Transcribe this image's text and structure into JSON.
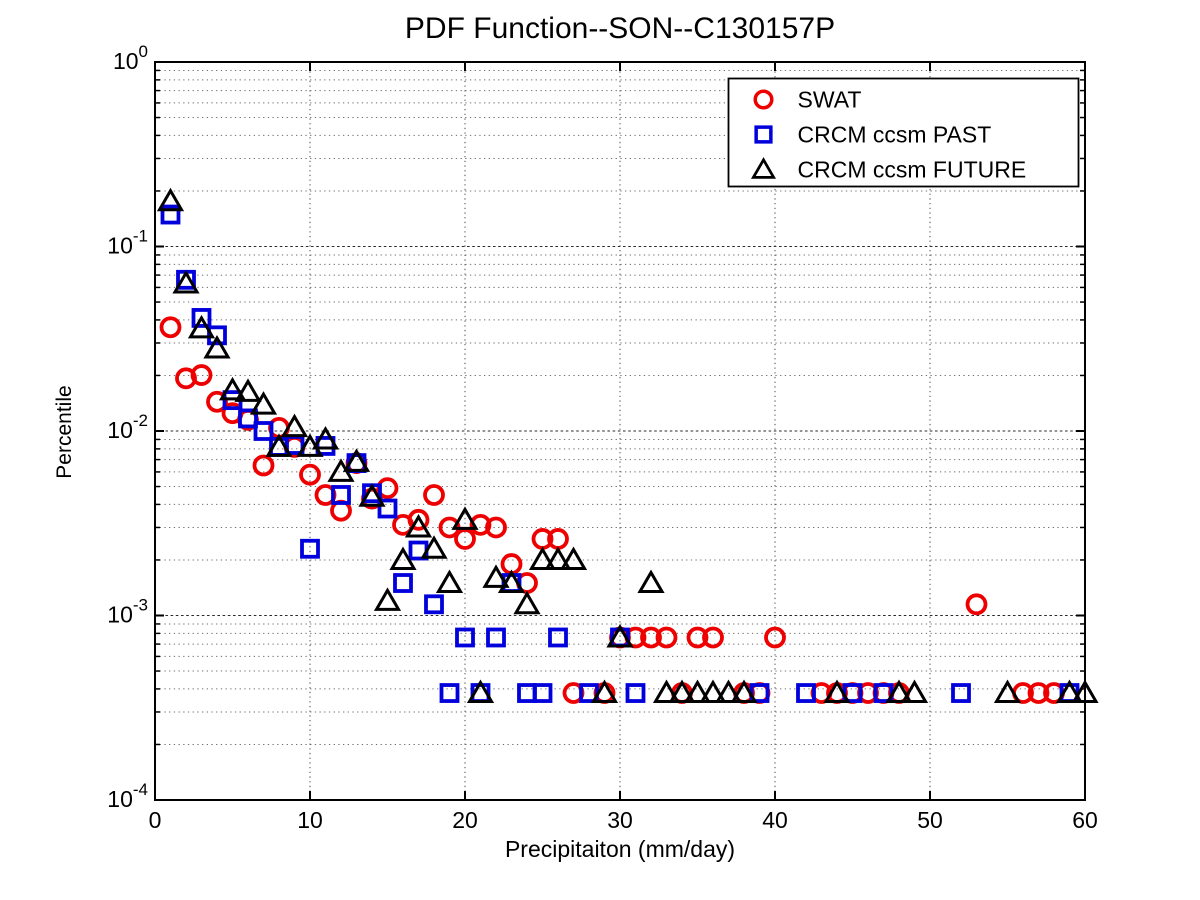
{
  "chart_data": {
    "type": "scatter",
    "title": "PDF Function--SON--C130157P",
    "xlabel": "Precipitaiton (mm/day)",
    "ylabel": "Percentile",
    "x_axis": {
      "min": 0,
      "max": 60,
      "ticks": [
        0,
        10,
        20,
        30,
        40,
        50,
        60
      ]
    },
    "y_axis": {
      "scale": "log",
      "min_exp": -4,
      "max_exp": 0,
      "tick_exponents": [
        0,
        -1,
        -2,
        -3,
        -4
      ]
    },
    "grid": "on",
    "legend_position": "top-right",
    "series": [
      {
        "name": "SWAT",
        "marker": "circle",
        "color": "#EE0000",
        "points": [
          [
            1,
            0.0365
          ],
          [
            2,
            0.0193
          ],
          [
            3,
            0.0201
          ],
          [
            4,
            0.0144
          ],
          [
            5,
            0.0125
          ],
          [
            6,
            0.0115
          ],
          [
            7,
            0.0065
          ],
          [
            8,
            0.0104
          ],
          [
            9,
            0.0082
          ],
          [
            10,
            0.0058
          ],
          [
            11,
            0.0045
          ],
          [
            12,
            0.0037
          ],
          [
            13,
            0.0067
          ],
          [
            14,
            0.0043
          ],
          [
            15,
            0.0049
          ],
          [
            16,
            0.0031
          ],
          [
            17,
            0.0033
          ],
          [
            18,
            0.0045
          ],
          [
            19,
            0.003
          ],
          [
            20,
            0.0026
          ],
          [
            21,
            0.0031
          ],
          [
            22,
            0.003
          ],
          [
            23,
            0.0019
          ],
          [
            24,
            0.0015
          ],
          [
            25,
            0.0026
          ],
          [
            26,
            0.0026
          ],
          [
            27,
            0.00038
          ],
          [
            29,
            0.00038
          ],
          [
            30,
            0.00076
          ],
          [
            31,
            0.00076
          ],
          [
            32,
            0.00076
          ],
          [
            33,
            0.00076
          ],
          [
            34,
            0.00038
          ],
          [
            35,
            0.00076
          ],
          [
            36,
            0.00076
          ],
          [
            38,
            0.00038
          ],
          [
            39,
            0.00038
          ],
          [
            40,
            0.00076
          ],
          [
            43,
            0.00038
          ],
          [
            44,
            0.00038
          ],
          [
            45,
            0.00038
          ],
          [
            46,
            0.00038
          ],
          [
            47,
            0.00038
          ],
          [
            48,
            0.00038
          ],
          [
            53,
            0.00115
          ],
          [
            56,
            0.00038
          ],
          [
            57,
            0.00038
          ],
          [
            58,
            0.00038
          ]
        ]
      },
      {
        "name": "CRCM ccsm PAST",
        "marker": "square",
        "color": "#0000DD",
        "points": [
          [
            1,
            0.149
          ],
          [
            2,
            0.066
          ],
          [
            3,
            0.041
          ],
          [
            4,
            0.033
          ],
          [
            5,
            0.0147
          ],
          [
            6,
            0.0117
          ],
          [
            7,
            0.01
          ],
          [
            8,
            0.0082
          ],
          [
            9,
            0.0084
          ],
          [
            10,
            0.0023
          ],
          [
            11,
            0.0083
          ],
          [
            12,
            0.0045
          ],
          [
            13,
            0.0067
          ],
          [
            14,
            0.0046
          ],
          [
            15,
            0.0038
          ],
          [
            16,
            0.0015
          ],
          [
            17,
            0.00225
          ],
          [
            18,
            0.00115
          ],
          [
            19,
            0.00038
          ],
          [
            20,
            0.00076
          ],
          [
            21,
            0.00038
          ],
          [
            22,
            0.00076
          ],
          [
            23,
            0.0015
          ],
          [
            24,
            0.00038
          ],
          [
            25,
            0.00038
          ],
          [
            26,
            0.00076
          ],
          [
            28,
            0.00038
          ],
          [
            30,
            0.00076
          ],
          [
            31,
            0.00038
          ],
          [
            39,
            0.00038
          ],
          [
            42,
            0.00038
          ],
          [
            45,
            0.00038
          ],
          [
            47,
            0.00038
          ],
          [
            52,
            0.00038
          ],
          [
            59,
            0.00038
          ]
        ]
      },
      {
        "name": "CRCM ccsm FUTURE",
        "marker": "triangle",
        "color": "#000000",
        "points": [
          [
            1,
            0.176
          ],
          [
            2,
            0.063
          ],
          [
            3,
            0.036
          ],
          [
            4,
            0.028
          ],
          [
            5,
            0.0166
          ],
          [
            6,
            0.0163
          ],
          [
            7,
            0.0139
          ],
          [
            8,
            0.0082
          ],
          [
            9,
            0.0105
          ],
          [
            10,
            0.0082
          ],
          [
            11,
            0.009
          ],
          [
            12,
            0.006
          ],
          [
            13,
            0.0068
          ],
          [
            14,
            0.0044
          ],
          [
            15,
            0.0012
          ],
          [
            16,
            0.002
          ],
          [
            17,
            0.003
          ],
          [
            18,
            0.0023
          ],
          [
            19,
            0.0015
          ],
          [
            20,
            0.0033
          ],
          [
            21,
            0.00038
          ],
          [
            22,
            0.0016
          ],
          [
            23,
            0.0015
          ],
          [
            24,
            0.00115
          ],
          [
            25,
            0.002
          ],
          [
            26,
            0.002
          ],
          [
            27,
            0.002
          ],
          [
            29,
            0.00038
          ],
          [
            30,
            0.00076
          ],
          [
            32,
            0.0015
          ],
          [
            33,
            0.00038
          ],
          [
            34,
            0.00038
          ],
          [
            35,
            0.00038
          ],
          [
            36,
            0.00038
          ],
          [
            37,
            0.00038
          ],
          [
            38,
            0.00038
          ],
          [
            44,
            0.00038
          ],
          [
            48,
            0.00038
          ],
          [
            49,
            0.00038
          ],
          [
            55,
            0.00038
          ],
          [
            59,
            0.00038
          ],
          [
            60,
            0.00038
          ]
        ]
      }
    ]
  }
}
